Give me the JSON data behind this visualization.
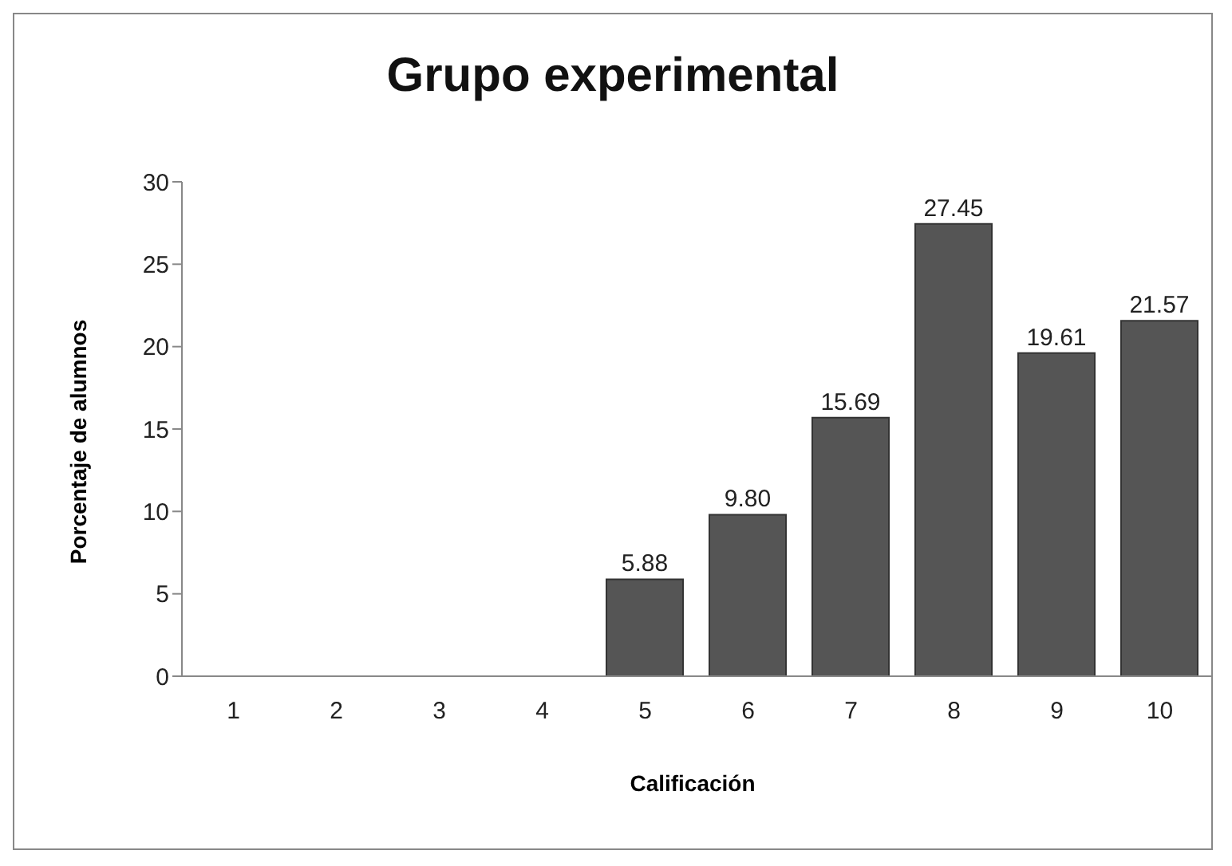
{
  "chart_data": {
    "type": "bar",
    "title": "Grupo experimental",
    "xlabel": "Calificación",
    "ylabel": "Porcentaje de alumnos",
    "categories": [
      "1",
      "2",
      "3",
      "4",
      "5",
      "6",
      "7",
      "8",
      "9",
      "10"
    ],
    "values": [
      null,
      null,
      null,
      null,
      5.88,
      9.8,
      15.69,
      27.45,
      19.61,
      21.57
    ],
    "value_labels": [
      null,
      null,
      null,
      null,
      "5.88",
      "9.80",
      "15.69",
      "27.45",
      "19.61",
      "21.57"
    ],
    "color": "#555555",
    "ylim": [
      0,
      30
    ],
    "yticks": [
      0,
      5,
      10,
      15,
      20,
      25,
      30
    ],
    "grid": false,
    "legend": false
  }
}
